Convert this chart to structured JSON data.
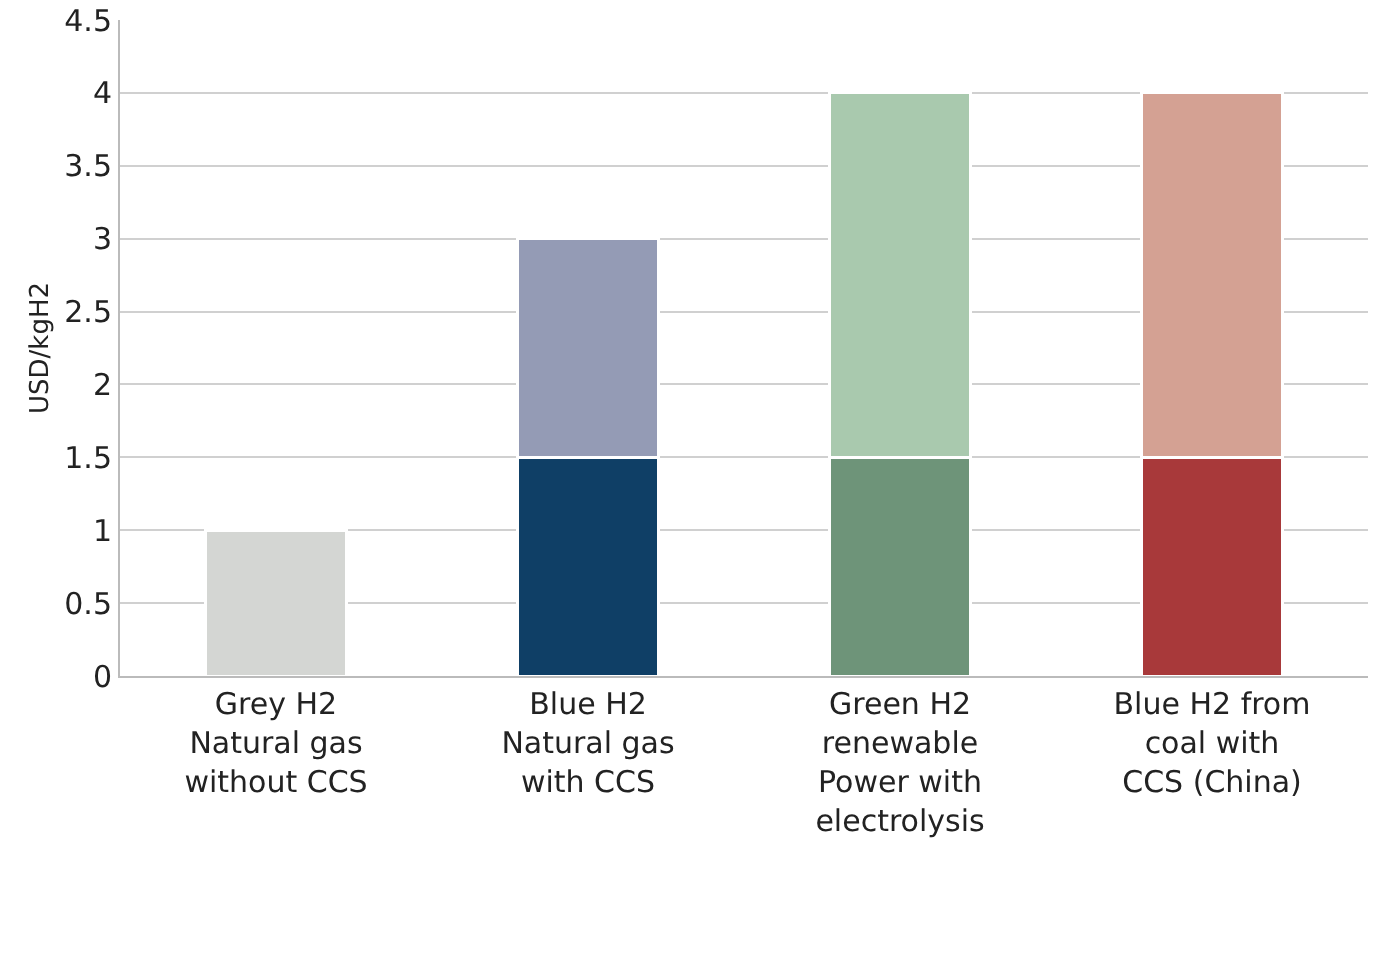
{
  "chart_data": {
    "type": "bar",
    "ylabel": "USD/kgH2",
    "stacked": true,
    "categories": [
      "Grey H2 Natural gas without CCS",
      "Blue H2 Natural gas with CCS",
      "Green H2 renewable Power with electrolysis",
      "Blue H2 from coal with CCS (China)"
    ],
    "series": [
      {
        "colors": [
          "#d4d6d3",
          "#0f3f66",
          "#6e9479",
          "#a8393a"
        ],
        "values": [
          1,
          1.5,
          1.5,
          1.5
        ]
      },
      {
        "colors": [
          "#d4d6d3",
          "#949bb5",
          "#a9c9ae",
          "#d4a193"
        ],
        "values": [
          null,
          1.5,
          2.5,
          2.5
        ]
      }
    ],
    "ylim": [
      0,
      4.5
    ],
    "yticks": [
      0,
      0.5,
      1,
      1.5,
      2,
      2.5,
      3,
      3.5,
      4,
      4.5
    ],
    "grid": "y"
  }
}
